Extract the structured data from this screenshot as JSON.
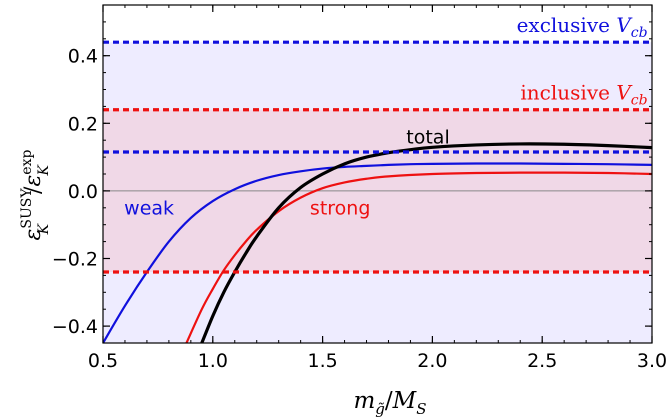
{
  "chart_data": {
    "type": "line",
    "xlabel": "m_g̃/M_S",
    "xlabel_parts": {
      "m": "m",
      "sub": "g̃",
      "slash": "/",
      "M": "M",
      "sub2": "S"
    },
    "ylabel_parts": {
      "eps": "ε",
      "sup": "SUSY",
      "sub": "K",
      "slash": "/",
      "sup2": "exp"
    },
    "xlim": [
      0.5,
      3.0
    ],
    "ylim": [
      -0.45,
      0.55
    ],
    "x_ticks": [
      "0.5",
      "1.0",
      "1.5",
      "2.0",
      "2.5",
      "3.0"
    ],
    "x_tick_values": [
      0.5,
      1.0,
      1.5,
      2.0,
      2.5,
      3.0
    ],
    "y_ticks": [
      "−0.4",
      "−0.2",
      "0.0",
      "0.2",
      "0.4"
    ],
    "y_tick_values": [
      -0.4,
      -0.2,
      0.0,
      0.2,
      0.4
    ],
    "bands": [
      {
        "name": "exclusive V_cb",
        "ymin": -0.45,
        "ymax": 0.44,
        "color": "#5a40ff",
        "opacity": 0.1
      },
      {
        "name": "inclusive V_cb",
        "ymin": -0.24,
        "ymax": 0.24,
        "color": "#ff4a3a",
        "opacity": 0.12
      }
    ],
    "reference_lines": [
      {
        "y": 0.44,
        "color": "#1010dd"
      },
      {
        "y": 0.24,
        "color": "#ee1111"
      },
      {
        "y": 0.115,
        "color": "#1010dd"
      },
      {
        "y": -0.24,
        "color": "#ee1111"
      }
    ],
    "annotations": [
      {
        "text_main": "exclusive V",
        "text_sub": "cb",
        "color": "#1010dd",
        "x": 2.98,
        "y": 0.47,
        "anchor": "end"
      },
      {
        "text_main": "inclusive V",
        "text_sub": "cb",
        "color": "#ee1111",
        "x": 2.98,
        "y": 0.27,
        "anchor": "end"
      },
      {
        "text_main": "total",
        "text_sub": "",
        "color": "#000000",
        "x": 1.98,
        "y": 0.14,
        "anchor": "middle"
      },
      {
        "text_main": "weak",
        "text_sub": "",
        "color": "#1010dd",
        "x": 0.71,
        "y": -0.07,
        "anchor": "middle"
      },
      {
        "text_main": "strong",
        "text_sub": "",
        "color": "#ee1111",
        "x": 1.58,
        "y": -0.07,
        "anchor": "middle"
      }
    ],
    "series": [
      {
        "name": "weak",
        "color": "#1010dd",
        "width": 2.2,
        "x": [
          0.5,
          0.6,
          0.7,
          0.8,
          0.9,
          1.0,
          1.1,
          1.2,
          1.3,
          1.4,
          1.5,
          1.6,
          1.7,
          1.8,
          1.9,
          2.0,
          2.2,
          2.4,
          2.6,
          2.8,
          3.0
        ],
        "y": [
          -0.45,
          -0.34,
          -0.24,
          -0.15,
          -0.08,
          -0.03,
          0.005,
          0.03,
          0.047,
          0.058,
          0.066,
          0.071,
          0.074,
          0.077,
          0.079,
          0.08,
          0.081,
          0.081,
          0.08,
          0.079,
          0.077
        ]
      },
      {
        "name": "strong",
        "color": "#ee1111",
        "width": 2.2,
        "x": [
          0.88,
          0.95,
          1.0,
          1.05,
          1.1,
          1.15,
          1.2,
          1.3,
          1.4,
          1.5,
          1.6,
          1.7,
          1.8,
          2.0,
          2.2,
          2.4,
          2.6,
          2.8,
          3.0
        ],
        "y": [
          -0.45,
          -0.35,
          -0.29,
          -0.235,
          -0.19,
          -0.15,
          -0.115,
          -0.06,
          -0.02,
          0.008,
          0.025,
          0.036,
          0.043,
          0.05,
          0.053,
          0.054,
          0.054,
          0.053,
          0.05
        ]
      },
      {
        "name": "total",
        "color": "#000000",
        "width": 3.2,
        "x": [
          0.95,
          1.0,
          1.05,
          1.1,
          1.15,
          1.2,
          1.3,
          1.4,
          1.5,
          1.6,
          1.7,
          1.8,
          1.9,
          2.0,
          2.2,
          2.4,
          2.6,
          2.8,
          3.0
        ],
        "y": [
          -0.45,
          -0.37,
          -0.3,
          -0.24,
          -0.185,
          -0.135,
          -0.05,
          0.01,
          0.05,
          0.08,
          0.1,
          0.113,
          0.122,
          0.129,
          0.136,
          0.139,
          0.138,
          0.134,
          0.128
        ]
      }
    ]
  }
}
